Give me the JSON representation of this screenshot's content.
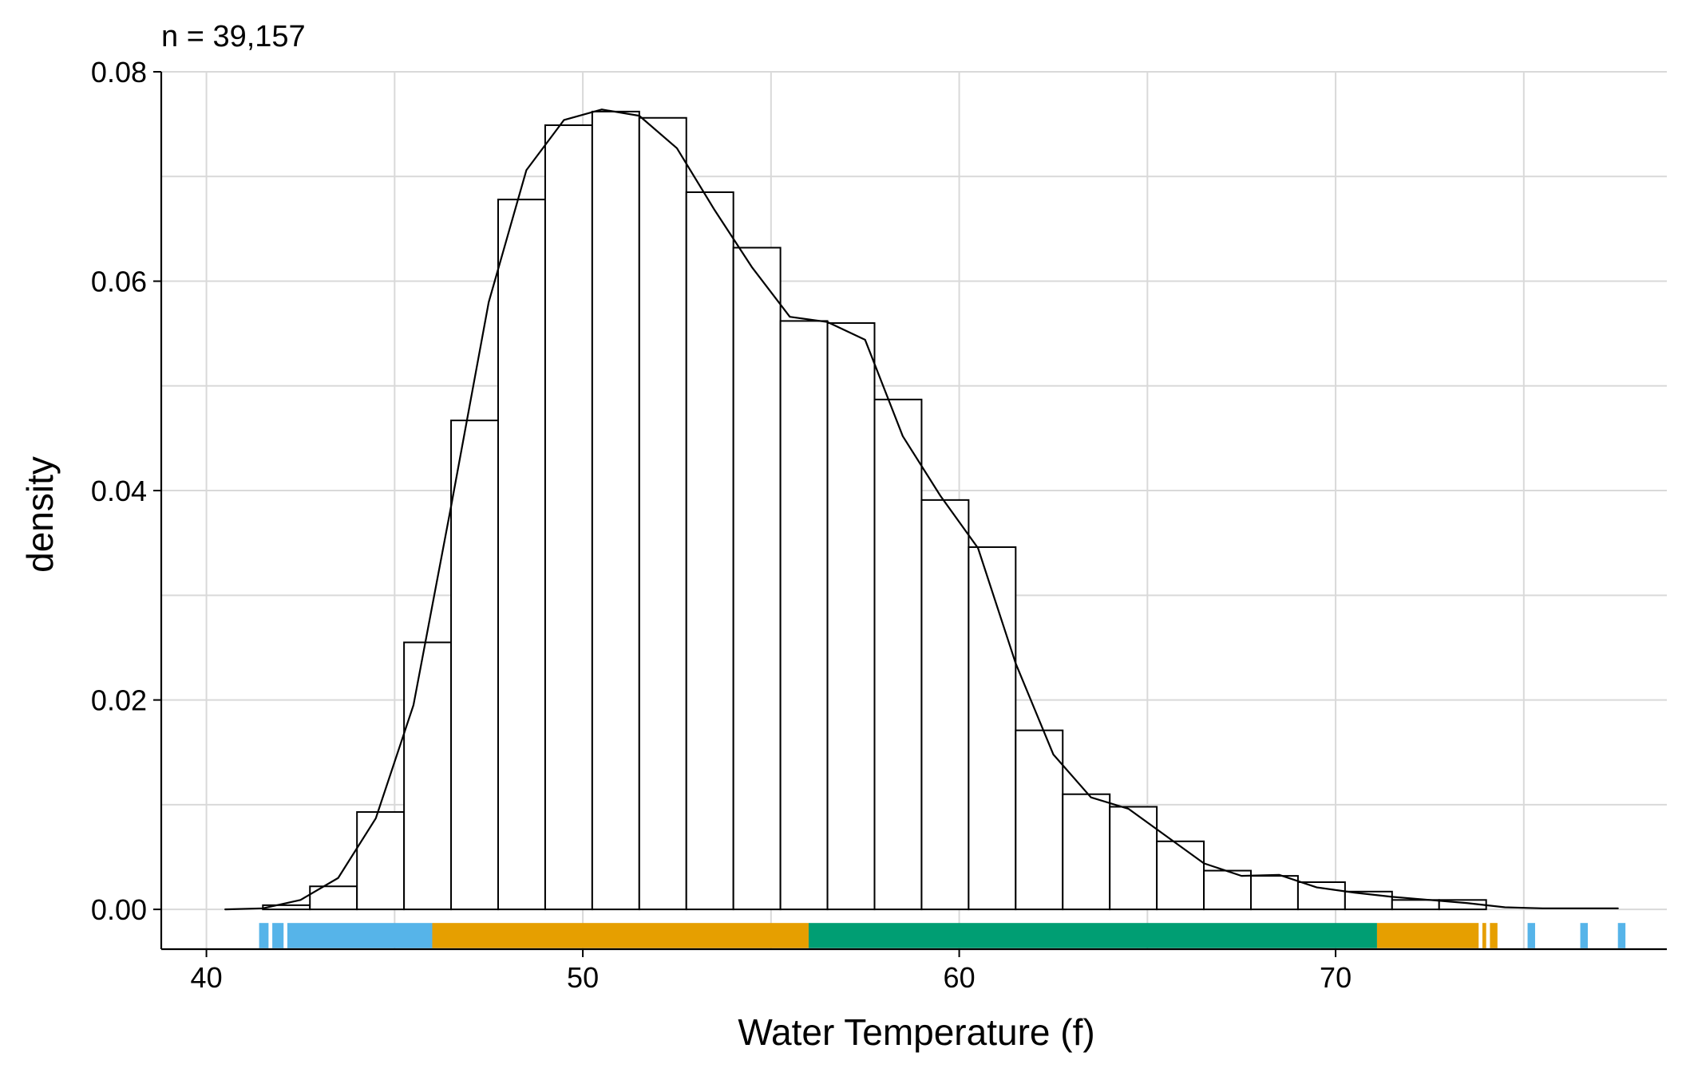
{
  "chart_data": {
    "type": "histogram",
    "subtitle": "n = 39,157",
    "xlabel": "Water Temperature (f)",
    "ylabel": "density",
    "xlim": [
      38.8,
      78.8
    ],
    "ylim": [
      -0.0038,
      0.08
    ],
    "x_ticks": [
      40,
      50,
      60,
      70
    ],
    "x_tick_labels": [
      "40",
      "50",
      "60",
      "70"
    ],
    "y_ticks": [
      0,
      0.02,
      0.04,
      0.06,
      0.08
    ],
    "y_tick_labels": [
      "0.00",
      "0.02",
      "0.04",
      "0.06",
      "0.08"
    ],
    "grid": true,
    "bin_width": 1.25,
    "bins": [
      {
        "start": 41.5,
        "end": 42.75,
        "value": 0.0004
      },
      {
        "start": 42.75,
        "end": 44.0,
        "value": 0.0022
      },
      {
        "start": 44.0,
        "end": 45.25,
        "value": 0.0093
      },
      {
        "start": 45.25,
        "end": 46.5,
        "value": 0.0255
      },
      {
        "start": 46.5,
        "end": 47.75,
        "value": 0.0467
      },
      {
        "start": 47.75,
        "end": 49.0,
        "value": 0.0678
      },
      {
        "start": 49.0,
        "end": 50.25,
        "value": 0.0749
      },
      {
        "start": 50.25,
        "end": 51.5,
        "value": 0.0762
      },
      {
        "start": 51.5,
        "end": 52.75,
        "value": 0.0756
      },
      {
        "start": 52.75,
        "end": 54.0,
        "value": 0.0685
      },
      {
        "start": 54.0,
        "end": 55.25,
        "value": 0.0632
      },
      {
        "start": 55.25,
        "end": 56.5,
        "value": 0.0562
      },
      {
        "start": 56.5,
        "end": 57.75,
        "value": 0.056
      },
      {
        "start": 57.75,
        "end": 59.0,
        "value": 0.0487
      },
      {
        "start": 59.0,
        "end": 60.25,
        "value": 0.0391
      },
      {
        "start": 60.25,
        "end": 61.5,
        "value": 0.0346
      },
      {
        "start": 61.5,
        "end": 62.75,
        "value": 0.0171
      },
      {
        "start": 62.75,
        "end": 64.0,
        "value": 0.011
      },
      {
        "start": 64.0,
        "end": 65.25,
        "value": 0.0098
      },
      {
        "start": 65.25,
        "end": 66.5,
        "value": 0.0065
      },
      {
        "start": 66.5,
        "end": 67.75,
        "value": 0.0037
      },
      {
        "start": 67.75,
        "end": 69.0,
        "value": 0.0032
      },
      {
        "start": 69.0,
        "end": 70.25,
        "value": 0.0026
      },
      {
        "start": 70.25,
        "end": 71.5,
        "value": 0.0017
      },
      {
        "start": 71.5,
        "end": 72.75,
        "value": 0.0009
      },
      {
        "start": 72.75,
        "end": 74.0,
        "value": 0.0009
      }
    ],
    "density_curve": {
      "x": [
        40.5,
        41.5,
        42.5,
        43.5,
        44.5,
        45.5,
        46.5,
        47.5,
        48.5,
        49.5,
        50.5,
        51.5,
        52.5,
        53.5,
        54.5,
        55.5,
        56.5,
        57.5,
        58.5,
        59.5,
        60.5,
        61.5,
        62.5,
        63.5,
        64.5,
        65.5,
        66.5,
        67.5,
        68.5,
        69.5,
        70.5,
        71.5,
        72.5,
        73.5,
        74.5,
        75.5,
        76.5,
        77.5
      ],
      "y": [
        0.0,
        0.0001,
        0.0009,
        0.003,
        0.0087,
        0.0195,
        0.0385,
        0.058,
        0.0706,
        0.0754,
        0.0764,
        0.0758,
        0.0727,
        0.0668,
        0.0613,
        0.0566,
        0.0561,
        0.0544,
        0.0452,
        0.0395,
        0.0345,
        0.0235,
        0.0148,
        0.0107,
        0.0096,
        0.007,
        0.0044,
        0.0032,
        0.0033,
        0.0021,
        0.0016,
        0.0012,
        0.0009,
        0.0006,
        0.0002,
        0.0001,
        0.0001,
        0.0001
      ]
    },
    "rug_segments": [
      {
        "start": 41.4,
        "end": 41.65,
        "color": "#56B4E9"
      },
      {
        "start": 41.75,
        "end": 42.05,
        "color": "#56B4E9"
      },
      {
        "start": 42.15,
        "end": 46.0,
        "color": "#56B4E9"
      },
      {
        "start": 46.0,
        "end": 56.0,
        "color": "#E69F00"
      },
      {
        "start": 56.0,
        "end": 71.1,
        "color": "#009E73"
      },
      {
        "start": 71.1,
        "end": 73.8,
        "color": "#E69F00"
      },
      {
        "start": 73.9,
        "end": 74.0,
        "color": "#E69F00"
      },
      {
        "start": 74.1,
        "end": 74.3,
        "color": "#E69F00"
      },
      {
        "start": 75.1,
        "end": 75.3,
        "color": "#56B4E9"
      },
      {
        "start": 76.5,
        "end": 76.7,
        "color": "#56B4E9"
      },
      {
        "start": 77.5,
        "end": 77.7,
        "color": "#56B4E9"
      }
    ],
    "colors": {
      "bar_fill": "#ffffff",
      "bar_stroke": "#000000",
      "grid": "#d9d9d9",
      "axis": "#000000",
      "curve": "#000000"
    }
  }
}
